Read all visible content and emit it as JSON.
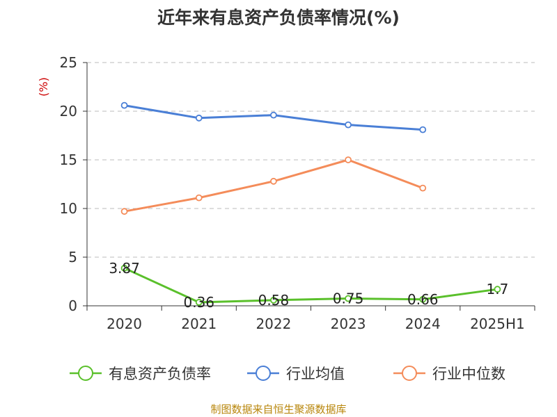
{
  "title": "近年来有息资产负债率情况(%)",
  "source": "制图数据来自恒生聚源数据库",
  "chart_data": {
    "type": "line",
    "title": "近年来有息资产负债率情况(%)",
    "ylabel": "(%)",
    "xlabel": "",
    "categories": [
      "2020",
      "2021",
      "2022",
      "2023",
      "2024",
      "2025H1"
    ],
    "ylim": [
      0,
      25
    ],
    "yticks": [
      0,
      5,
      10,
      15,
      20,
      25
    ],
    "grid": true,
    "legend_position": "bottom",
    "series": [
      {
        "name": "有息资产负债率",
        "color": "#5ac02b",
        "values": [
          3.87,
          0.36,
          0.58,
          0.75,
          0.66,
          1.7
        ],
        "labels": [
          "3.87",
          "0.36",
          "0.58",
          "0.75",
          "0.66",
          "1.7"
        ]
      },
      {
        "name": "行业均值",
        "color": "#4a7fd6",
        "values": [
          20.6,
          19.3,
          19.6,
          18.6,
          18.1,
          null
        ]
      },
      {
        "name": "行业中位数",
        "color": "#f48c5a",
        "values": [
          9.7,
          11.1,
          12.8,
          15.0,
          12.1,
          null
        ]
      }
    ]
  }
}
